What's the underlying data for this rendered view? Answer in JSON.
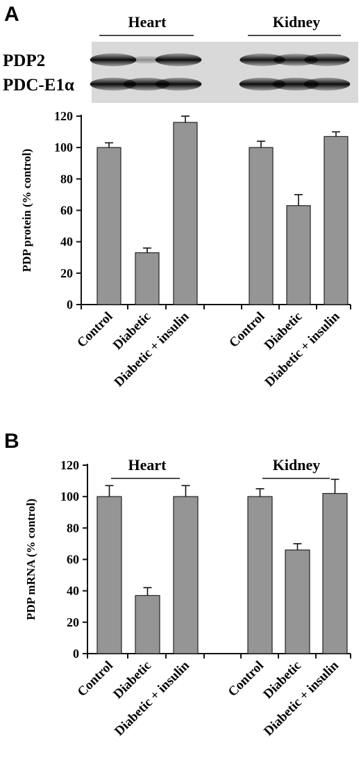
{
  "panel_a": {
    "letter": "A",
    "blot": {
      "group_labels": [
        "Heart",
        "Kidney"
      ],
      "row_labels": [
        "PDP2",
        "PDC-E1α"
      ],
      "band_intensity": {
        "PDP2": [
          0.95,
          0.25,
          0.95,
          0.9,
          0.85,
          0.9
        ],
        "PDC-E1α": [
          0.95,
          0.95,
          0.95,
          0.95,
          0.95,
          0.95
        ]
      }
    }
  },
  "panel_b": {
    "letter": "B"
  },
  "chart_data": [
    {
      "type": "bar",
      "panel": "A",
      "ylabel": "PDP protein (% control)",
      "ylim": [
        0,
        120
      ],
      "yticks": [
        "0",
        "20",
        "40",
        "60",
        "80",
        "100",
        "120"
      ],
      "groups": [
        "Heart",
        "Kidney"
      ],
      "categories": [
        "Control",
        "Diabetic",
        "Diabetic + insulin",
        "Control",
        "Diabetic",
        "Diabetic + insulin"
      ],
      "values": [
        100,
        33,
        116,
        100,
        63,
        107
      ],
      "errors": [
        3,
        3,
        4,
        4,
        7,
        3
      ],
      "bar_color": "#959595"
    },
    {
      "type": "bar",
      "panel": "B",
      "ylabel": "PDP mRNA (% control)",
      "ylim": [
        0,
        120
      ],
      "yticks": [
        "0",
        "20",
        "40",
        "60",
        "80",
        "100",
        "120"
      ],
      "groups": [
        "Heart",
        "Kidney"
      ],
      "categories": [
        "Control",
        "Diabetic",
        "Diabetic + insulin",
        "Control",
        "Diabetic",
        "Diabetic + insulin"
      ],
      "values": [
        100,
        37,
        100,
        100,
        66,
        102
      ],
      "errors": [
        7,
        5,
        7,
        5,
        4,
        9
      ],
      "bar_color": "#959595"
    }
  ]
}
